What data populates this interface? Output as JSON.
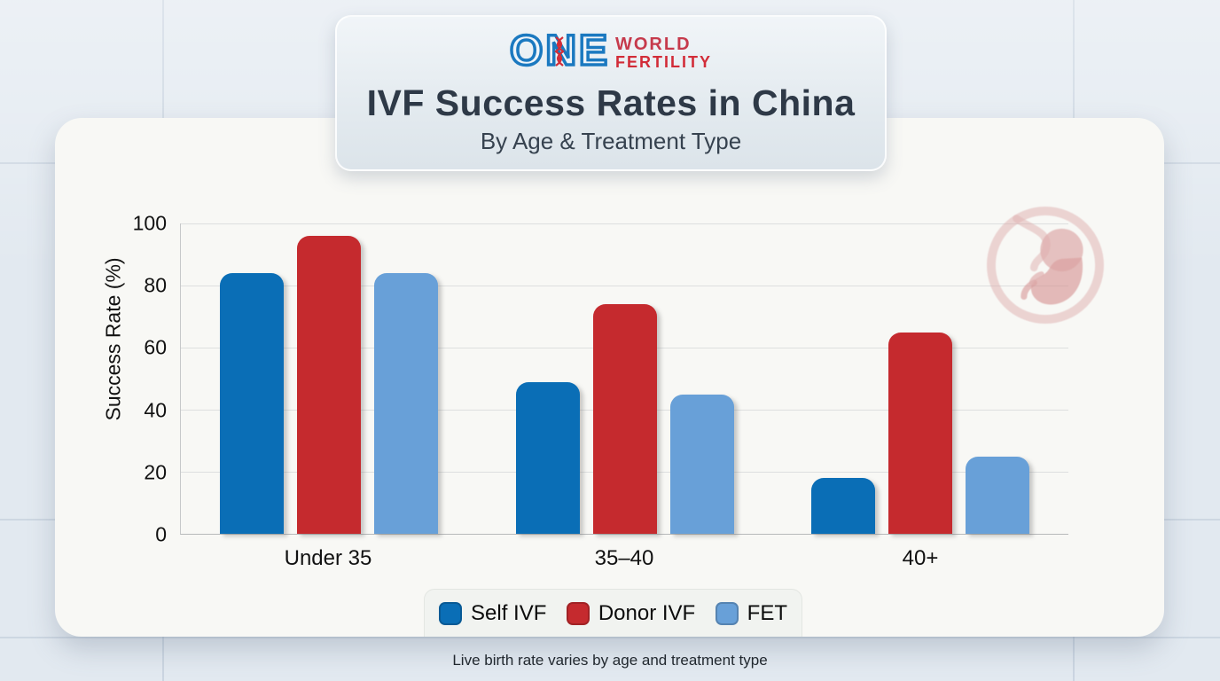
{
  "header": {
    "logo": {
      "one_text": "ONE",
      "world_text": "WORLD",
      "fertility_text": "FERTILITY",
      "blue": "#1b79c0",
      "red": "#d22c38"
    },
    "title": "IVF Success Rates in China",
    "subtitle": "By Age & Treatment Type"
  },
  "chart_data": {
    "type": "bar",
    "title": "IVF Success Rates in China",
    "subtitle": "By Age & Treatment Type",
    "categories": [
      "Under 35",
      "35–40",
      "40+"
    ],
    "series": [
      {
        "name": "Self IVF",
        "color": "#0a6eb6",
        "values": [
          84,
          49,
          18
        ]
      },
      {
        "name": "Donor IVF",
        "color": "#c52a2e",
        "values": [
          96,
          74,
          65
        ]
      },
      {
        "name": "FET",
        "color": "#68a0d8",
        "values": [
          84,
          45,
          25
        ]
      }
    ],
    "xlabel": "",
    "ylabel": "Success Rate (%)",
    "ylim": [
      0,
      100
    ],
    "yticks": [
      0,
      20,
      40,
      60,
      80,
      100
    ],
    "grid": true,
    "legend_position": "bottom"
  },
  "footer": {
    "note": "Live birth rate varies by age and treatment type"
  },
  "decoration": {
    "fetus_icon_color": "#d89c9c"
  }
}
